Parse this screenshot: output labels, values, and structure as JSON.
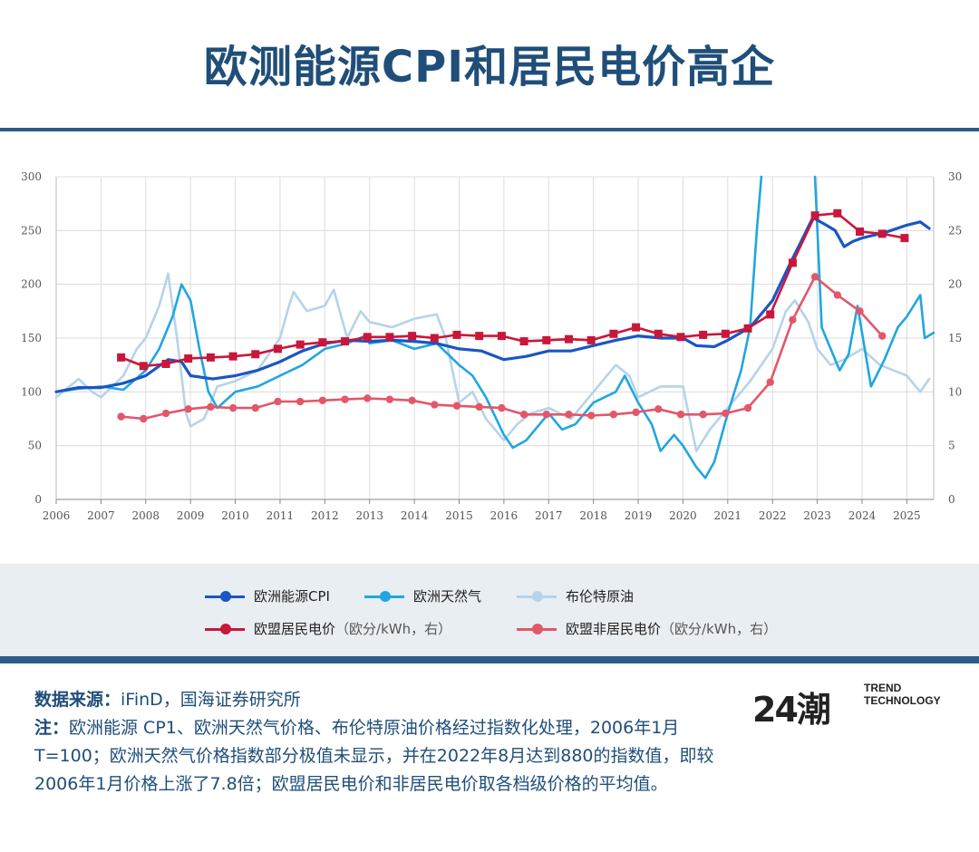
{
  "title": "欧测能源CPI和居民电价高企",
  "chart_data": {
    "type": "line",
    "x_ticks": [
      "2006",
      "2007",
      "2008",
      "2009",
      "2010",
      "2011",
      "2012",
      "2013",
      "2014",
      "2015",
      "2016",
      "2017",
      "2018",
      "2019",
      "2020",
      "2021",
      "2022",
      "2023",
      "2024",
      "2025"
    ],
    "y_left": {
      "ticks": [
        "0",
        "50",
        "100",
        "150",
        "200",
        "250",
        "300"
      ],
      "lim": [
        0,
        300
      ]
    },
    "y_right": {
      "ticks": [
        "0",
        "5",
        "10",
        "15",
        "20",
        "25",
        "30"
      ],
      "lim": [
        0,
        30
      ]
    },
    "grid": true,
    "legend_position": "bottom",
    "series": [
      {
        "name": "欧洲能源CPI",
        "axis": "left",
        "color": "#1a56c4",
        "marker": "none",
        "points": [
          [
            2006.0,
            100
          ],
          [
            2006.5,
            104
          ],
          [
            2007.0,
            104
          ],
          [
            2007.5,
            108
          ],
          [
            2008.0,
            115
          ],
          [
            2008.5,
            130
          ],
          [
            2008.8,
            128
          ],
          [
            2009.0,
            115
          ],
          [
            2009.5,
            112
          ],
          [
            2010.0,
            115
          ],
          [
            2010.5,
            120
          ],
          [
            2011.0,
            128
          ],
          [
            2011.5,
            138
          ],
          [
            2012.0,
            145
          ],
          [
            2012.5,
            148
          ],
          [
            2013.0,
            147
          ],
          [
            2013.5,
            148
          ],
          [
            2014.0,
            147
          ],
          [
            2014.5,
            145
          ],
          [
            2015.0,
            140
          ],
          [
            2015.5,
            138
          ],
          [
            2016.0,
            130
          ],
          [
            2016.5,
            133
          ],
          [
            2017.0,
            138
          ],
          [
            2017.5,
            138
          ],
          [
            2018.0,
            143
          ],
          [
            2018.5,
            148
          ],
          [
            2019.0,
            152
          ],
          [
            2019.5,
            150
          ],
          [
            2020.0,
            150
          ],
          [
            2020.3,
            143
          ],
          [
            2020.7,
            142
          ],
          [
            2021.0,
            148
          ],
          [
            2021.5,
            160
          ],
          [
            2022.0,
            185
          ],
          [
            2022.4,
            220
          ],
          [
            2022.7,
            245
          ],
          [
            2022.9,
            262
          ],
          [
            2023.2,
            255
          ],
          [
            2023.4,
            250
          ],
          [
            2023.6,
            235
          ],
          [
            2023.8,
            240
          ],
          [
            2024.0,
            243
          ],
          [
            2024.5,
            248
          ],
          [
            2025.0,
            255
          ],
          [
            2025.3,
            258
          ],
          [
            2025.5,
            252
          ]
        ]
      },
      {
        "name": "欧洲天然气",
        "axis": "left",
        "color": "#20a6e0",
        "marker": "none",
        "points": [
          [
            2006.0,
            100
          ],
          [
            2006.5,
            103
          ],
          [
            2007.0,
            105
          ],
          [
            2007.5,
            102
          ],
          [
            2008.0,
            120
          ],
          [
            2008.3,
            140
          ],
          [
            2008.6,
            170
          ],
          [
            2008.8,
            200
          ],
          [
            2009.0,
            185
          ],
          [
            2009.2,
            140
          ],
          [
            2009.4,
            100
          ],
          [
            2009.6,
            85
          ],
          [
            2010.0,
            100
          ],
          [
            2010.5,
            105
          ],
          [
            2011.0,
            115
          ],
          [
            2011.5,
            125
          ],
          [
            2012.0,
            140
          ],
          [
            2012.5,
            145
          ],
          [
            2012.9,
            152
          ],
          [
            2013.0,
            145
          ],
          [
            2013.5,
            148
          ],
          [
            2014.0,
            140
          ],
          [
            2014.5,
            145
          ],
          [
            2015.0,
            125
          ],
          [
            2015.3,
            115
          ],
          [
            2015.6,
            95
          ],
          [
            2016.0,
            60
          ],
          [
            2016.2,
            48
          ],
          [
            2016.5,
            55
          ],
          [
            2017.0,
            80
          ],
          [
            2017.3,
            65
          ],
          [
            2017.6,
            70
          ],
          [
            2018.0,
            90
          ],
          [
            2018.5,
            100
          ],
          [
            2018.7,
            115
          ],
          [
            2019.0,
            90
          ],
          [
            2019.3,
            70
          ],
          [
            2019.5,
            45
          ],
          [
            2019.8,
            60
          ],
          [
            2020.0,
            50
          ],
          [
            2020.3,
            30
          ],
          [
            2020.5,
            20
          ],
          [
            2020.7,
            35
          ],
          [
            2021.0,
            80
          ],
          [
            2021.3,
            120
          ],
          [
            2021.5,
            160
          ],
          [
            2021.65,
            250
          ],
          [
            2021.75,
            300
          ]
        ]
      },
      {
        "name": "欧洲天然气",
        "axis": "left",
        "color": "#20a6e0",
        "marker": "none",
        "points": [
          [
            2022.95,
            300
          ],
          [
            2023.1,
            160
          ],
          [
            2023.3,
            140
          ],
          [
            2023.5,
            120
          ],
          [
            2023.7,
            135
          ],
          [
            2023.9,
            180
          ],
          [
            2024.2,
            105
          ],
          [
            2024.5,
            130
          ],
          [
            2024.8,
            160
          ],
          [
            2025.0,
            170
          ],
          [
            2025.3,
            190
          ],
          [
            2025.4,
            150
          ],
          [
            2025.6,
            155
          ]
        ]
      },
      {
        "name": "布伦特原油",
        "axis": "left",
        "color": "#b6d3e9",
        "marker": "none",
        "points": [
          [
            2006.0,
            95
          ],
          [
            2006.5,
            112
          ],
          [
            2006.8,
            100
          ],
          [
            2007.0,
            95
          ],
          [
            2007.5,
            115
          ],
          [
            2007.8,
            140
          ],
          [
            2008.0,
            150
          ],
          [
            2008.3,
            180
          ],
          [
            2008.5,
            210
          ],
          [
            2008.7,
            150
          ],
          [
            2008.9,
            80
          ],
          [
            2009.0,
            68
          ],
          [
            2009.3,
            75
          ],
          [
            2009.6,
            105
          ],
          [
            2010.0,
            110
          ],
          [
            2010.5,
            120
          ],
          [
            2011.0,
            150
          ],
          [
            2011.2,
            180
          ],
          [
            2011.3,
            193
          ],
          [
            2011.6,
            175
          ],
          [
            2012.0,
            180
          ],
          [
            2012.2,
            195
          ],
          [
            2012.5,
            150
          ],
          [
            2012.8,
            175
          ],
          [
            2013.0,
            165
          ],
          [
            2013.5,
            160
          ],
          [
            2014.0,
            168
          ],
          [
            2014.5,
            172
          ],
          [
            2014.7,
            150
          ],
          [
            2015.0,
            90
          ],
          [
            2015.3,
            100
          ],
          [
            2015.6,
            75
          ],
          [
            2016.0,
            55
          ],
          [
            2016.3,
            70
          ],
          [
            2016.6,
            80
          ],
          [
            2017.0,
            85
          ],
          [
            2017.5,
            75
          ],
          [
            2018.0,
            100
          ],
          [
            2018.5,
            125
          ],
          [
            2018.8,
            115
          ],
          [
            2019.0,
            95
          ],
          [
            2019.5,
            105
          ],
          [
            2020.0,
            105
          ],
          [
            2020.3,
            45
          ],
          [
            2020.6,
            65
          ],
          [
            2021.0,
            85
          ],
          [
            2021.5,
            110
          ],
          [
            2022.0,
            140
          ],
          [
            2022.3,
            175
          ],
          [
            2022.5,
            185
          ],
          [
            2022.8,
            165
          ],
          [
            2023.0,
            140
          ],
          [
            2023.3,
            125
          ],
          [
            2023.6,
            130
          ],
          [
            2024.0,
            140
          ],
          [
            2024.4,
            125
          ],
          [
            2024.7,
            120
          ],
          [
            2025.0,
            115
          ],
          [
            2025.3,
            100
          ],
          [
            2025.5,
            112
          ]
        ]
      },
      {
        "name": "欧盟居民电价（欧分/kWh，右）",
        "axis": "right",
        "color": "#c8173a",
        "marker": "square",
        "points": [
          [
            2007.45,
            13.2
          ],
          [
            2007.95,
            12.4
          ],
          [
            2008.45,
            12.6
          ],
          [
            2008.95,
            13.1
          ],
          [
            2009.45,
            13.2
          ],
          [
            2009.95,
            13.3
          ],
          [
            2010.45,
            13.5
          ],
          [
            2010.95,
            14.0
          ],
          [
            2011.45,
            14.4
          ],
          [
            2011.95,
            14.6
          ],
          [
            2012.45,
            14.7
          ],
          [
            2012.95,
            15.1
          ],
          [
            2013.45,
            15.1
          ],
          [
            2013.95,
            15.2
          ],
          [
            2014.45,
            15.0
          ],
          [
            2014.95,
            15.3
          ],
          [
            2015.45,
            15.2
          ],
          [
            2015.95,
            15.2
          ],
          [
            2016.45,
            14.7
          ],
          [
            2016.95,
            14.8
          ],
          [
            2017.45,
            14.9
          ],
          [
            2017.95,
            14.8
          ],
          [
            2018.45,
            15.4
          ],
          [
            2018.95,
            16.0
          ],
          [
            2019.45,
            15.4
          ],
          [
            2019.95,
            15.1
          ],
          [
            2020.45,
            15.3
          ],
          [
            2020.95,
            15.4
          ],
          [
            2021.45,
            15.9
          ],
          [
            2021.95,
            17.2
          ],
          [
            2022.45,
            22.0
          ],
          [
            2022.95,
            26.4
          ],
          [
            2023.45,
            26.6
          ],
          [
            2023.95,
            24.9
          ],
          [
            2024.45,
            24.7
          ],
          [
            2024.95,
            24.3
          ]
        ]
      },
      {
        "name": "欧盟非居民电价（欧分/kWh，右）",
        "axis": "right",
        "color": "#e2576a",
        "marker": "circle",
        "points": [
          [
            2007.45,
            7.7
          ],
          [
            2007.95,
            7.5
          ],
          [
            2008.45,
            8.0
          ],
          [
            2008.95,
            8.4
          ],
          [
            2009.45,
            8.6
          ],
          [
            2009.95,
            8.5
          ],
          [
            2010.45,
            8.5
          ],
          [
            2010.95,
            9.1
          ],
          [
            2011.45,
            9.1
          ],
          [
            2011.95,
            9.2
          ],
          [
            2012.45,
            9.3
          ],
          [
            2012.95,
            9.4
          ],
          [
            2013.45,
            9.3
          ],
          [
            2013.95,
            9.2
          ],
          [
            2014.45,
            8.8
          ],
          [
            2014.95,
            8.7
          ],
          [
            2015.45,
            8.6
          ],
          [
            2015.95,
            8.5
          ],
          [
            2016.45,
            7.9
          ],
          [
            2016.95,
            7.9
          ],
          [
            2017.45,
            7.9
          ],
          [
            2017.95,
            7.8
          ],
          [
            2018.45,
            7.9
          ],
          [
            2018.95,
            8.1
          ],
          [
            2019.45,
            8.4
          ],
          [
            2019.95,
            7.9
          ],
          [
            2020.45,
            7.9
          ],
          [
            2020.95,
            8.0
          ],
          [
            2021.45,
            8.5
          ],
          [
            2021.95,
            10.9
          ],
          [
            2022.45,
            16.7
          ],
          [
            2022.95,
            20.7
          ],
          [
            2023.45,
            19.0
          ],
          [
            2023.95,
            17.5
          ],
          [
            2024.45,
            15.2
          ]
        ]
      }
    ]
  },
  "legend": [
    {
      "label": "欧洲能源CPI",
      "unit": "",
      "color": "#1a56c4"
    },
    {
      "label": "欧洲天然气",
      "unit": "",
      "color": "#20a6e0"
    },
    {
      "label": "布伦特原油",
      "unit": "",
      "color": "#b6d3e9"
    },
    {
      "label": "欧盟居民电价",
      "unit": "（欧分/kWh，右）",
      "color": "#c8173a"
    },
    {
      "label": "欧盟非居民电价",
      "unit": "（欧分/kWh，右）",
      "color": "#e2576a"
    }
  ],
  "notes": {
    "source_label": "数据来源：",
    "source_text": "iFinD，国海证券研究所",
    "note_label": "注：",
    "note_text": "欧洲能源 CP1、欧洲天然气价格、布伦特原油价格经过指数化处理，2006年1月T=100；欧洲天然气价格指数部分极值未显示，并在2022年8月达到880的指数值，即较2006年1月价格上涨了7.8倍；欧盟居民电价和非居民电价取各档级价格的平均值。"
  },
  "logo": {
    "mark": "24潮",
    "line1": "TREND",
    "line2": "TECHNOLOGY"
  }
}
